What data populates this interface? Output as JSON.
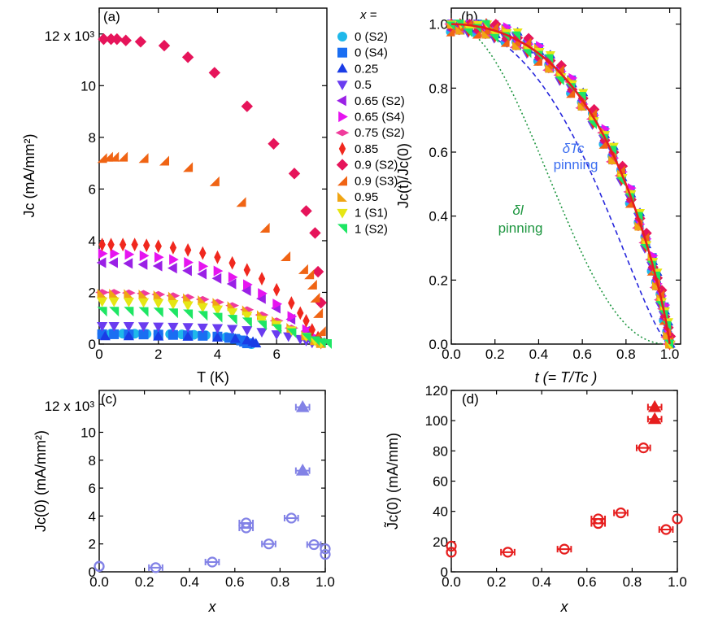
{
  "chart_data": [
    {
      "panel": "(a)",
      "type": "scatter",
      "xlabel": "T (K)",
      "ylabel": "Jc (mA/mm²)",
      "xlim": [
        0,
        7.7
      ],
      "ylim": [
        0,
        13000
      ],
      "y_top_label": "12 x 10³",
      "x_ticks": [
        "0",
        "2",
        "4",
        "6"
      ],
      "y_ticks": [
        "0",
        "2",
        "4",
        "6",
        "8",
        "10"
      ],
      "legend_title": "x =",
      "series": [
        {
          "name": "0 (S2)",
          "color": "#1fb8ea",
          "marker": "circle",
          "x": [
            0.1,
            0.4,
            0.8,
            1.2,
            1.6,
            2.0,
            2.4,
            2.8,
            3.2,
            3.6,
            4.0,
            4.3,
            4.5,
            4.7,
            4.9,
            5.0,
            5.1,
            5.15
          ],
          "y": [
            400,
            400,
            400,
            400,
            395,
            390,
            385,
            375,
            360,
            340,
            310,
            270,
            230,
            180,
            120,
            70,
            20,
            0
          ]
        },
        {
          "name": "0 (S4)",
          "color": "#1a6ef2",
          "marker": "square",
          "x": [
            0.1,
            0.5,
            1.0,
            1.5,
            2.0,
            2.5,
            3.0,
            3.5,
            4.0,
            4.4,
            4.6,
            4.8,
            4.9,
            5.0
          ],
          "y": [
            380,
            380,
            378,
            372,
            365,
            355,
            340,
            320,
            290,
            240,
            200,
            140,
            90,
            30
          ]
        },
        {
          "name": "0.25",
          "color": "#1a3ce6",
          "marker": "triangle-up",
          "x": [
            0.2,
            1.0,
            2.0,
            3.0,
            4.0,
            4.6,
            5.0,
            5.2,
            5.3
          ],
          "y": [
            300,
            300,
            290,
            280,
            250,
            200,
            140,
            80,
            20
          ]
        },
        {
          "name": "0.5",
          "color": "#6a3cf0",
          "marker": "triangle-down",
          "x": [
            0.1,
            0.5,
            1.0,
            1.5,
            2.0,
            2.5,
            3.0,
            3.5,
            4.0,
            4.5,
            5.0,
            5.5,
            6.0,
            6.4,
            6.8,
            7.0,
            7.2
          ],
          "y": [
            700,
            700,
            700,
            690,
            680,
            670,
            660,
            640,
            620,
            590,
            540,
            470,
            380,
            300,
            200,
            130,
            50
          ]
        },
        {
          "name": "0.65 (S2)",
          "color": "#9a20e6",
          "marker": "triangle-left",
          "x": [
            0.1,
            0.5,
            1.0,
            1.5,
            2.0,
            2.5,
            3.0,
            3.5,
            4.0,
            4.5,
            5.0,
            5.5,
            6.0,
            6.5,
            7.0,
            7.3,
            7.5
          ],
          "y": [
            3150,
            3150,
            3120,
            3080,
            3020,
            2940,
            2840,
            2710,
            2540,
            2330,
            2070,
            1760,
            1390,
            960,
            500,
            220,
            50
          ]
        },
        {
          "name": "0.65 (S4)",
          "color": "#e614f0",
          "marker": "triangle-right",
          "x": [
            0.1,
            0.5,
            1.0,
            1.5,
            2.0,
            2.5,
            3.0,
            3.5,
            4.0,
            4.5,
            5.0,
            5.5,
            6.0,
            6.5,
            7.0,
            7.3,
            7.5
          ],
          "y": [
            3500,
            3500,
            3470,
            3420,
            3360,
            3270,
            3160,
            3010,
            2830,
            2590,
            2300,
            1960,
            1550,
            1070,
            560,
            250,
            60
          ]
        },
        {
          "name": "0.75 (S2)",
          "color": "#f03c9c",
          "marker": "diamond-wide",
          "x": [
            0.1,
            0.5,
            1.0,
            1.5,
            2.0,
            2.5,
            3.0,
            3.5,
            4.0,
            4.5,
            5.0,
            5.5,
            6.0,
            6.5,
            7.0,
            7.3,
            7.5
          ],
          "y": [
            2000,
            2000,
            1980,
            1960,
            1920,
            1870,
            1810,
            1730,
            1620,
            1490,
            1330,
            1130,
            900,
            620,
            330,
            150,
            40
          ]
        },
        {
          "name": "0.85",
          "color": "#f0281e",
          "marker": "diamond-tall",
          "x": [
            0.1,
            0.4,
            0.8,
            1.2,
            1.6,
            2.0,
            2.5,
            3.0,
            3.5,
            4.0,
            4.5,
            5.0,
            5.5,
            6.0,
            6.5,
            6.8,
            7.0,
            7.2,
            7.4,
            7.5
          ],
          "y": [
            3850,
            3850,
            3850,
            3850,
            3820,
            3790,
            3730,
            3640,
            3520,
            3360,
            3140,
            2870,
            2530,
            2100,
            1590,
            1200,
            900,
            550,
            250,
            60
          ]
        },
        {
          "name": "0.9 (S2)",
          "color": "#e6145a",
          "marker": "diamond",
          "x": [
            0.15,
            0.4,
            0.6,
            0.9,
            1.4,
            2.2,
            3.0,
            3.9,
            5.0,
            5.9,
            6.6,
            7.0,
            7.3,
            7.4,
            7.5
          ],
          "y": [
            11800,
            11800,
            11800,
            11750,
            11700,
            11550,
            11100,
            10500,
            9200,
            7750,
            6600,
            5150,
            4300,
            2800,
            1600
          ]
        },
        {
          "name": "0.9 (S3)",
          "color": "#f06414",
          "marker": "triangle-ul",
          "x": [
            0.1,
            0.3,
            0.5,
            0.8,
            1.5,
            2.2,
            3.0,
            3.9,
            4.8,
            5.6,
            6.3,
            6.9,
            7.1,
            7.2,
            7.3,
            7.4,
            7.5
          ],
          "y": [
            7200,
            7250,
            7250,
            7250,
            7200,
            7100,
            6850,
            6300,
            5500,
            4500,
            3400,
            2900,
            2700,
            2300,
            1800,
            1200,
            500
          ]
        },
        {
          "name": "0.95",
          "color": "#f0a514",
          "marker": "triangle-ur",
          "x": [
            0.1,
            0.5,
            1.0,
            1.5,
            2.0,
            2.5,
            3.0,
            3.5,
            4.0,
            4.5,
            5.0,
            5.5,
            6.0,
            6.5,
            7.0,
            7.3,
            7.5
          ],
          "y": [
            1950,
            1950,
            1940,
            1920,
            1890,
            1840,
            1780,
            1700,
            1600,
            1470,
            1310,
            1120,
            890,
            630,
            340,
            150,
            40
          ]
        },
        {
          "name": "1 (S1)",
          "color": "#e6e614",
          "marker": "triangle-down",
          "x": [
            0.1,
            0.5,
            1.0,
            1.5,
            2.0,
            2.5,
            3.0,
            3.5,
            4.0,
            4.5,
            5.0,
            5.5,
            6.0,
            6.5,
            7.0,
            7.3,
            7.5
          ],
          "y": [
            1650,
            1650,
            1640,
            1620,
            1590,
            1550,
            1500,
            1430,
            1340,
            1230,
            1100,
            940,
            750,
            530,
            290,
            130,
            40
          ]
        },
        {
          "name": "1 (S2)",
          "color": "#1ee664",
          "marker": "triangle-dr",
          "x": [
            0.1,
            0.5,
            1.0,
            1.5,
            2.0,
            2.5,
            3.0,
            3.5,
            4.0,
            4.5,
            5.0,
            5.5,
            6.0,
            6.5,
            7.0,
            7.3,
            7.5,
            7.7
          ],
          "y": [
            1250,
            1250,
            1250,
            1240,
            1220,
            1190,
            1150,
            1090,
            1020,
            940,
            840,
            720,
            580,
            420,
            240,
            110,
            40,
            0
          ]
        }
      ]
    },
    {
      "panel": "(b)",
      "type": "scatter",
      "xlabel": "t (= T/Tc )",
      "ylabel": "Jc(t)/Jc(0)",
      "xlim": [
        0,
        1.05
      ],
      "ylim": [
        0,
        1.05
      ],
      "x_ticks": [
        "0.0",
        "0.2",
        "0.4",
        "0.6",
        "0.8",
        "1.0"
      ],
      "y_ticks": [
        "0.0",
        "0.2",
        "0.4",
        "0.6",
        "0.8",
        "1.0"
      ],
      "annotations": [
        {
          "text": "δTc",
          "color": "#3c6ef0"
        },
        {
          "text": "pinning",
          "color": "#3c6ef0"
        },
        {
          "text": "δl",
          "color": "#1e9640"
        },
        {
          "text": "pinning",
          "color": "#1e9640"
        }
      ],
      "curves": [
        {
          "name": "fit",
          "color": "#e61e1e",
          "style": "solid"
        },
        {
          "name": "δTc",
          "color": "#2828dc",
          "style": "dashed"
        },
        {
          "name": "δl",
          "color": "#1e9640",
          "style": "dotted"
        }
      ],
      "scatter_colors": [
        "#1fb8ea",
        "#1a6ef2",
        "#1a3ce6",
        "#6a3cf0",
        "#9a20e6",
        "#e614f0",
        "#f03c9c",
        "#f0281e",
        "#e6145a",
        "#f06414",
        "#f0a514",
        "#e6e614",
        "#1ee664"
      ],
      "t": [
        0.0,
        0.04,
        0.08,
        0.12,
        0.16,
        0.2,
        0.25,
        0.3,
        0.35,
        0.4,
        0.45,
        0.5,
        0.55,
        0.6,
        0.65,
        0.7,
        0.74,
        0.78,
        0.82,
        0.86,
        0.89,
        0.92,
        0.94,
        0.96,
        0.975,
        0.99,
        1.0
      ]
    },
    {
      "panel": "(c)",
      "type": "scatter",
      "xlabel": "x",
      "ylabel": "Jc(0) (mA/mm²)",
      "xlim": [
        0,
        1.0
      ],
      "ylim": [
        0,
        13000
      ],
      "y_top_label": "12 x 10³",
      "x_ticks": [
        "0.0",
        "0.2",
        "0.4",
        "0.6",
        "0.8",
        "1.0"
      ],
      "y_ticks": [
        "0",
        "2",
        "4",
        "6",
        "8",
        "10"
      ],
      "color": "#8282e6",
      "points": [
        {
          "x": 0.0,
          "y": 400,
          "marker": "circle",
          "xerr": 0
        },
        {
          "x": 0.0,
          "y": 380,
          "marker": "circle",
          "xerr": 0
        },
        {
          "x": 0.25,
          "y": 300,
          "marker": "circle",
          "xerr": 0.03
        },
        {
          "x": 0.5,
          "y": 700,
          "marker": "circle",
          "xerr": 0.03
        },
        {
          "x": 0.65,
          "y": 3150,
          "marker": "circle",
          "xerr": 0.03
        },
        {
          "x": 0.65,
          "y": 3500,
          "marker": "circle",
          "xerr": 0.03
        },
        {
          "x": 0.75,
          "y": 2000,
          "marker": "circle",
          "xerr": 0.03
        },
        {
          "x": 0.85,
          "y": 3850,
          "marker": "circle",
          "xerr": 0.03
        },
        {
          "x": 0.9,
          "y": 11800,
          "marker": "triangle",
          "xerr": 0.03
        },
        {
          "x": 0.9,
          "y": 7250,
          "marker": "triangle",
          "xerr": 0.03
        },
        {
          "x": 0.95,
          "y": 1950,
          "marker": "circle",
          "xerr": 0.03
        },
        {
          "x": 1.0,
          "y": 1650,
          "marker": "circle",
          "xerr": 0
        },
        {
          "x": 1.0,
          "y": 1250,
          "marker": "circle",
          "xerr": 0
        }
      ]
    },
    {
      "panel": "(d)",
      "type": "scatter",
      "xlabel": "x",
      "ylabel": "J̃c(0) (mA/mm)",
      "xlim": [
        0,
        1.0
      ],
      "ylim": [
        0,
        120
      ],
      "x_ticks": [
        "0.0",
        "0.2",
        "0.4",
        "0.6",
        "0.8",
        "1.0"
      ],
      "y_ticks": [
        "0",
        "20",
        "40",
        "60",
        "80",
        "100",
        "120"
      ],
      "color": "#e61e1e",
      "points": [
        {
          "x": 0.0,
          "y": 17,
          "marker": "circle",
          "xerr": 0
        },
        {
          "x": 0.0,
          "y": 13,
          "marker": "circle",
          "xerr": 0
        },
        {
          "x": 0.25,
          "y": 13,
          "marker": "circle",
          "xerr": 0.03
        },
        {
          "x": 0.5,
          "y": 15,
          "marker": "circle",
          "xerr": 0.03
        },
        {
          "x": 0.65,
          "y": 32,
          "marker": "circle",
          "xerr": 0.03
        },
        {
          "x": 0.65,
          "y": 35,
          "marker": "circle",
          "xerr": 0.03
        },
        {
          "x": 0.75,
          "y": 39,
          "marker": "circle",
          "xerr": 0.03
        },
        {
          "x": 0.85,
          "y": 82,
          "marker": "circle",
          "xerr": 0.03
        },
        {
          "x": 0.9,
          "y": 109,
          "marker": "triangle",
          "xerr": 0.03
        },
        {
          "x": 0.9,
          "y": 101,
          "marker": "triangle",
          "xerr": 0.03
        },
        {
          "x": 0.95,
          "y": 28,
          "marker": "circle",
          "xerr": 0.03
        },
        {
          "x": 1.0,
          "y": 35,
          "marker": "circle",
          "xerr": 0
        }
      ]
    }
  ]
}
